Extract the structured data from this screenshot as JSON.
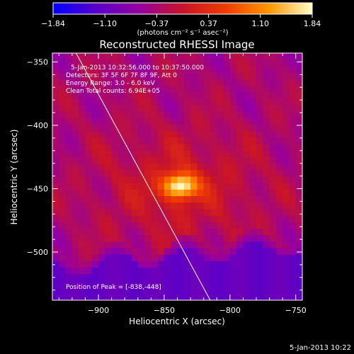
{
  "colorbar": {
    "ticks": [
      "-1.84",
      "-1.10",
      "-0.37",
      "0.37",
      "1.10",
      "1.84"
    ],
    "unit_label": "(photons cm⁻² s⁻¹ asec⁻²)",
    "min": -1.84,
    "max": 1.84
  },
  "chart_data": {
    "type": "heatmap",
    "title": "Reconstructed RHESSI Image",
    "xlabel": "Heliocentric X (arcsec)",
    "ylabel": "Heliocentric Y (arcsec)",
    "xlim": [
      -935,
      -745
    ],
    "ylim": [
      -538,
      -343
    ],
    "xticks": [
      -900,
      -850,
      -800,
      -750
    ],
    "yticks": [
      -350,
      -400,
      -450,
      -500
    ],
    "x_tick_labels": [
      "−900",
      "−850",
      "−800",
      "−750"
    ],
    "y_tick_labels": [
      "−350",
      "−400",
      "−450",
      "−500"
    ],
    "peak": {
      "x": -838,
      "y": -448,
      "value": 1.84
    },
    "annotations": [
      "5-Jan-2013 10:32:56.000 to 10:37:50.000",
      "Detectors: 3F 5F 6F 7F 8F 9F, Att 0",
      "Energy Range: 3.0 - 6.0 keV",
      "Clean    Total counts: 6.94E+05"
    ],
    "peak_label": "Position of Peak = [-838,-448]",
    "limb_line": [
      [
        -917,
        -343
      ],
      [
        -815,
        -538
      ]
    ]
  },
  "footer": {
    "timestamp": "5-Jan-2013 10:22"
  },
  "colors": {
    "colormap": [
      "#0000ff",
      "#5a00c8",
      "#9600a0",
      "#c81428",
      "#f03c00",
      "#ff9600",
      "#ffffc8"
    ],
    "background": "#000000",
    "foreground": "#ffffff"
  }
}
